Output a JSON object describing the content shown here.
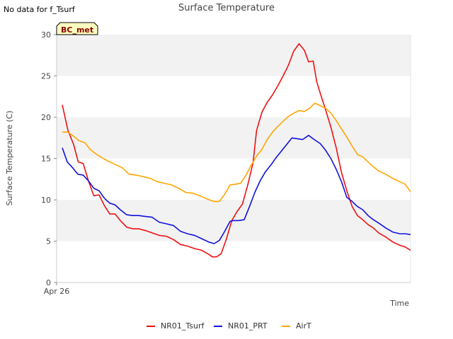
{
  "note": "No data for f_Tsurf",
  "badge": "BC_met",
  "chart_data": {
    "type": "line",
    "title": "Surface Temperature",
    "xlabel": "Time",
    "ylabel": "Surface Temperature (C)",
    "ylim": [
      0,
      30
    ],
    "yticks": [
      0,
      5,
      10,
      15,
      20,
      25,
      30
    ],
    "xlim": [
      0,
      1
    ],
    "xtick_labels": [
      {
        "x": 0,
        "label": "Apr 26"
      }
    ],
    "grid": "horizontal alternating bands",
    "legend_position": "bottom-center",
    "series": [
      {
        "name": "NR01_Tsurf",
        "color": "#ee1111",
        "x": [
          0.016,
          0.032,
          0.048,
          0.061,
          0.075,
          0.09,
          0.105,
          0.12,
          0.135,
          0.15,
          0.165,
          0.18,
          0.198,
          0.215,
          0.232,
          0.25,
          0.27,
          0.29,
          0.31,
          0.33,
          0.35,
          0.37,
          0.39,
          0.41,
          0.43,
          0.44,
          0.452,
          0.465,
          0.48,
          0.495,
          0.51,
          0.525,
          0.54,
          0.555,
          0.565,
          0.58,
          0.595,
          0.61,
          0.625,
          0.64,
          0.655,
          0.67,
          0.685,
          0.7,
          0.712,
          0.725,
          0.735,
          0.745,
          0.76,
          0.775,
          0.79,
          0.805,
          0.82,
          0.835,
          0.85,
          0.865,
          0.88,
          0.895,
          0.91,
          0.93,
          0.95,
          0.97,
          0.985,
          1.0
        ],
        "values": [
          21.5,
          18.4,
          16.7,
          14.6,
          14.4,
          12.3,
          10.5,
          10.6,
          9.3,
          8.3,
          8.3,
          7.5,
          6.7,
          6.5,
          6.5,
          6.3,
          6.0,
          5.7,
          5.6,
          5.2,
          4.6,
          4.4,
          4.1,
          3.9,
          3.4,
          3.1,
          3.1,
          3.5,
          5.3,
          7.5,
          8.6,
          9.5,
          11.8,
          14.5,
          18.4,
          20.6,
          21.8,
          22.7,
          23.8,
          25.0,
          26.3,
          28.0,
          28.9,
          28.1,
          26.7,
          26.8,
          24.3,
          22.9,
          20.9,
          18.8,
          16.3,
          13.3,
          11.1,
          9.2,
          8.1,
          7.6,
          7.0,
          6.6,
          6.0,
          5.5,
          4.9,
          4.5,
          4.3,
          3.9
        ]
      },
      {
        "name": "NR01_PRT",
        "color": "#1111dd",
        "x": [
          0.016,
          0.03,
          0.045,
          0.06,
          0.075,
          0.09,
          0.105,
          0.12,
          0.135,
          0.15,
          0.165,
          0.18,
          0.198,
          0.215,
          0.232,
          0.25,
          0.27,
          0.29,
          0.31,
          0.33,
          0.35,
          0.37,
          0.39,
          0.41,
          0.43,
          0.445,
          0.46,
          0.475,
          0.49,
          0.5,
          0.515,
          0.53,
          0.545,
          0.56,
          0.575,
          0.59,
          0.605,
          0.62,
          0.635,
          0.65,
          0.665,
          0.68,
          0.695,
          0.712,
          0.728,
          0.745,
          0.76,
          0.775,
          0.79,
          0.805,
          0.82,
          0.835,
          0.85,
          0.865,
          0.88,
          0.895,
          0.91,
          0.93,
          0.95,
          0.97,
          0.985,
          1.0
        ],
        "values": [
          16.3,
          14.6,
          13.9,
          13.1,
          13.0,
          12.3,
          11.4,
          11.1,
          10.2,
          9.6,
          9.4,
          8.8,
          8.2,
          8.1,
          8.1,
          8.0,
          7.9,
          7.3,
          7.1,
          6.9,
          6.2,
          5.9,
          5.7,
          5.3,
          4.9,
          4.7,
          5.1,
          6.2,
          7.4,
          7.5,
          7.5,
          7.6,
          9.2,
          10.9,
          12.3,
          13.4,
          14.2,
          15.1,
          15.9,
          16.7,
          17.5,
          17.4,
          17.3,
          17.8,
          17.3,
          16.8,
          16.0,
          15.0,
          13.7,
          12.2,
          10.3,
          9.8,
          9.2,
          8.8,
          8.1,
          7.6,
          7.2,
          6.6,
          6.1,
          5.9,
          5.9,
          5.8
        ]
      },
      {
        "name": "AirT",
        "color": "#ffa500",
        "x": [
          0.016,
          0.032,
          0.048,
          0.062,
          0.08,
          0.095,
          0.11,
          0.128,
          0.145,
          0.165,
          0.185,
          0.205,
          0.225,
          0.245,
          0.265,
          0.285,
          0.305,
          0.325,
          0.345,
          0.365,
          0.385,
          0.405,
          0.425,
          0.445,
          0.46,
          0.475,
          0.49,
          0.505,
          0.52,
          0.535,
          0.55,
          0.565,
          0.58,
          0.595,
          0.61,
          0.625,
          0.64,
          0.655,
          0.67,
          0.685,
          0.7,
          0.715,
          0.73,
          0.745,
          0.76,
          0.775,
          0.79,
          0.805,
          0.82,
          0.835,
          0.85,
          0.865,
          0.88,
          0.895,
          0.91,
          0.93,
          0.95,
          0.97,
          0.985,
          1.0
        ],
        "values": [
          18.2,
          18.2,
          17.7,
          17.2,
          16.9,
          16.1,
          15.6,
          15.1,
          14.7,
          14.3,
          13.9,
          13.1,
          13.0,
          12.8,
          12.6,
          12.2,
          12.0,
          11.8,
          11.4,
          10.9,
          10.8,
          10.5,
          10.1,
          9.8,
          9.8,
          10.7,
          11.8,
          11.9,
          12.0,
          13.0,
          14.2,
          15.3,
          16.1,
          17.3,
          18.2,
          18.9,
          19.5,
          20.1,
          20.5,
          20.8,
          20.7,
          21.1,
          21.7,
          21.4,
          21.1,
          20.5,
          19.6,
          18.6,
          17.6,
          16.5,
          15.5,
          15.2,
          14.6,
          14.0,
          13.5,
          13.1,
          12.6,
          12.2,
          11.9,
          11.0
        ]
      }
    ]
  }
}
